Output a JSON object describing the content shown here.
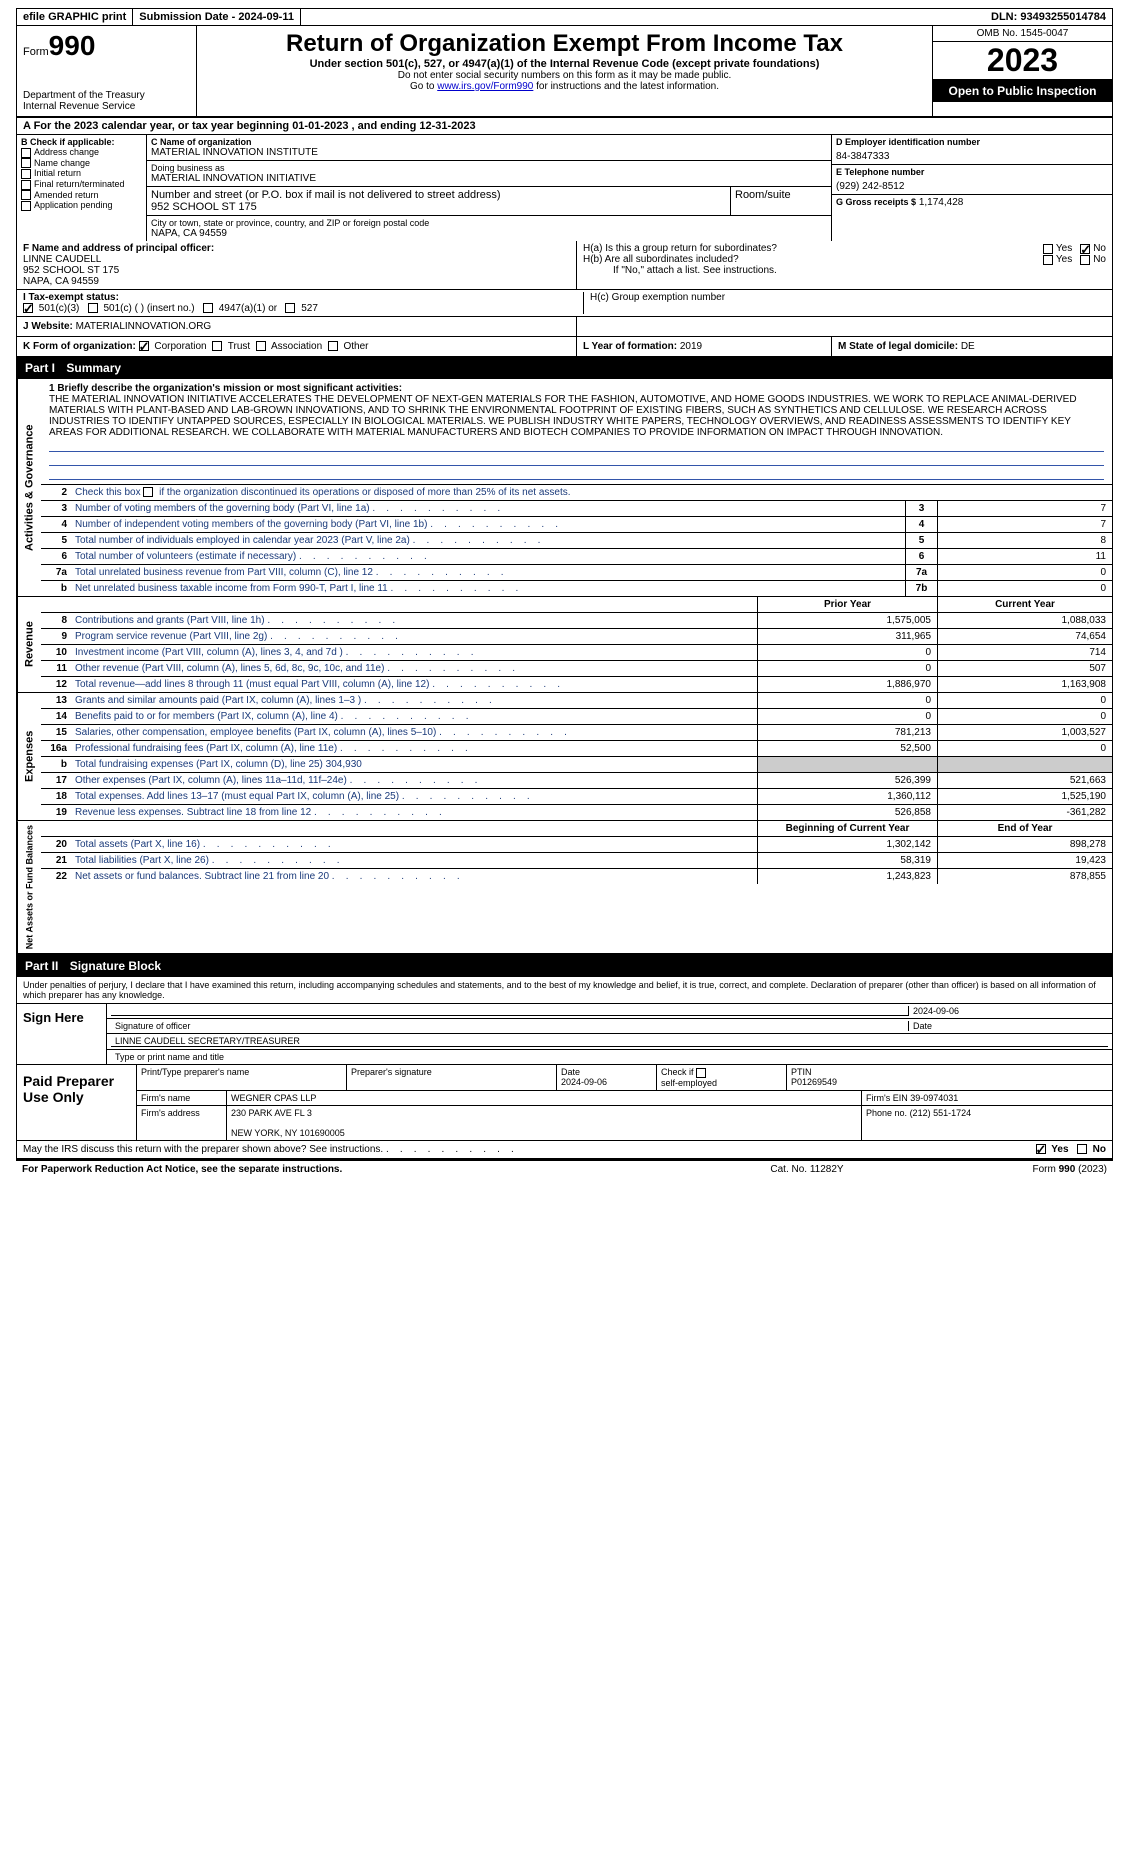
{
  "topbar": {
    "efile": "efile GRAPHIC print",
    "submission": "Submission Date - 2024-09-11",
    "dln": "DLN: 93493255014784"
  },
  "header": {
    "form_prefix": "Form",
    "form_num": "990",
    "dept": "Department of the Treasury",
    "irs": "Internal Revenue Service",
    "title": "Return of Organization Exempt From Income Tax",
    "sub": "Under section 501(c), 527, or 4947(a)(1) of the Internal Revenue Code (except private foundations)",
    "note1": "Do not enter social security numbers on this form as it may be made public.",
    "note2_pre": "Go to ",
    "note2_link": "www.irs.gov/Form990",
    "note2_post": " for instructions and the latest information.",
    "omb": "OMB No. 1545-0047",
    "year": "2023",
    "open": "Open to Public Inspection"
  },
  "section_a": "A For the 2023 calendar year, or tax year beginning 01-01-2023    , and ending 12-31-2023",
  "box_b": {
    "title": "B Check if applicable:",
    "items": [
      "Address change",
      "Name change",
      "Initial return",
      "Final return/terminated",
      "Amended return",
      "Application pending"
    ]
  },
  "box_c": {
    "name_lbl": "C Name of organization",
    "name": "MATERIAL INNOVATION INSTITUTE",
    "dba_lbl": "Doing business as",
    "dba": "MATERIAL INNOVATION INITIATIVE",
    "addr_lbl": "Number and street (or P.O. box if mail is not delivered to street address)",
    "addr": "952 SCHOOL ST 175",
    "room_lbl": "Room/suite",
    "city_lbl": "City or town, state or province, country, and ZIP or foreign postal code",
    "city": "NAPA, CA  94559"
  },
  "box_d": {
    "ein_lbl": "D Employer identification number",
    "ein": "84-3847333",
    "phone_lbl": "E Telephone number",
    "phone": "(929) 242-8512",
    "gross_lbl": "G Gross receipts $",
    "gross": "1,174,428"
  },
  "box_f": {
    "lbl": "F  Name and address of principal officer:",
    "name": "LINNE CAUDELL",
    "addr1": "952 SCHOOL ST 175",
    "addr2": "NAPA, CA  94559"
  },
  "box_h": {
    "ha": "H(a)  Is this a group return for subordinates?",
    "hb": "H(b)  Are all subordinates included?",
    "hb_note": "If \"No,\" attach a list. See instructions.",
    "hc": "H(c)  Group exemption number",
    "yes": "Yes",
    "no": "No"
  },
  "box_i": {
    "lbl": "I  Tax-exempt status:",
    "o1": "501(c)(3)",
    "o2": "501(c) (  ) (insert no.)",
    "o3": "4947(a)(1) or",
    "o4": "527"
  },
  "box_j": {
    "lbl": "J  Website:",
    "val": " MATERIALINNOVATION.ORG"
  },
  "box_k": {
    "lbl": "K Form of organization:",
    "o1": "Corporation",
    "o2": "Trust",
    "o3": "Association",
    "o4": "Other"
  },
  "box_l": {
    "lbl": "L Year of formation:",
    "val": "2019"
  },
  "box_m": {
    "lbl": "M State of legal domicile:",
    "val": "DE"
  },
  "part1": {
    "hdr": "Part I",
    "title": "Summary"
  },
  "mission": {
    "lbl": "1  Briefly describe the organization's mission or most significant activities:",
    "text": "THE MATERIAL INNOVATION INITIATIVE ACCELERATES THE DEVELOPMENT OF NEXT-GEN MATERIALS FOR THE FASHION, AUTOMOTIVE, AND HOME GOODS INDUSTRIES. WE WORK TO REPLACE ANIMAL-DERIVED MATERIALS WITH PLANT-BASED AND LAB-GROWN INNOVATIONS, AND TO SHRINK THE ENVIRONMENTAL FOOTPRINT OF EXISTING FIBERS, SUCH AS SYNTHETICS AND CELLULOSE. WE RESEARCH ACROSS INDUSTRIES TO IDENTIFY UNTAPPED SOURCES, ESPECIALLY IN BIOLOGICAL MATERIALS. WE PUBLISH INDUSTRY WHITE PAPERS, TECHNOLOGY OVERVIEWS, AND READINESS ASSESSMENTS TO IDENTIFY KEY AREAS FOR ADDITIONAL RESEARCH. WE COLLABORATE WITH MATERIAL MANUFACTURERS AND BIOTECH COMPANIES TO PROVIDE INFORMATION ON IMPACT THROUGH INNOVATION."
  },
  "tabs": {
    "ag": "Activities & Governance",
    "rev": "Revenue",
    "exp": "Expenses",
    "net": "Net Assets or Fund Balances"
  },
  "lines_ag": [
    {
      "n": "2",
      "d": "Check this box       if the organization discontinued its operations or disposed of more than 25% of its net assets.",
      "has_chk": true
    },
    {
      "n": "3",
      "d": "Number of voting members of the governing body (Part VI, line 1a)",
      "c": "3",
      "v": "7"
    },
    {
      "n": "4",
      "d": "Number of independent voting members of the governing body (Part VI, line 1b)",
      "c": "4",
      "v": "7"
    },
    {
      "n": "5",
      "d": "Total number of individuals employed in calendar year 2023 (Part V, line 2a)",
      "c": "5",
      "v": "8"
    },
    {
      "n": "6",
      "d": "Total number of volunteers (estimate if necessary)",
      "c": "6",
      "v": "11"
    },
    {
      "n": "7a",
      "d": "Total unrelated business revenue from Part VIII, column (C), line 12",
      "c": "7a",
      "v": "0"
    },
    {
      "n": "b",
      "d": "Net unrelated business taxable income from Form 990-T, Part I, line 11",
      "c": "7b",
      "v": "0"
    }
  ],
  "hdr_rev": {
    "c1": "Prior Year",
    "c2": "Current Year"
  },
  "lines_rev": [
    {
      "n": "8",
      "d": "Contributions and grants (Part VIII, line 1h)",
      "v1": "1,575,005",
      "v2": "1,088,033"
    },
    {
      "n": "9",
      "d": "Program service revenue (Part VIII, line 2g)",
      "v1": "311,965",
      "v2": "74,654"
    },
    {
      "n": "10",
      "d": "Investment income (Part VIII, column (A), lines 3, 4, and 7d )",
      "v1": "0",
      "v2": "714"
    },
    {
      "n": "11",
      "d": "Other revenue (Part VIII, column (A), lines 5, 6d, 8c, 9c, 10c, and 11e)",
      "v1": "0",
      "v2": "507"
    },
    {
      "n": "12",
      "d": "Total revenue—add lines 8 through 11 (must equal Part VIII, column (A), line 12)",
      "v1": "1,886,970",
      "v2": "1,163,908"
    }
  ],
  "lines_exp": [
    {
      "n": "13",
      "d": "Grants and similar amounts paid (Part IX, column (A), lines 1–3 )",
      "v1": "0",
      "v2": "0"
    },
    {
      "n": "14",
      "d": "Benefits paid to or for members (Part IX, column (A), line 4)",
      "v1": "0",
      "v2": "0"
    },
    {
      "n": "15",
      "d": "Salaries, other compensation, employee benefits (Part IX, column (A), lines 5–10)",
      "v1": "781,213",
      "v2": "1,003,527"
    },
    {
      "n": "16a",
      "d": "Professional fundraising fees (Part IX, column (A), line 11e)",
      "v1": "52,500",
      "v2": "0"
    },
    {
      "n": "b",
      "d": "Total fundraising expenses (Part IX, column (D), line 25) 304,930",
      "grey": true
    },
    {
      "n": "17",
      "d": "Other expenses (Part IX, column (A), lines 11a–11d, 11f–24e)",
      "v1": "526,399",
      "v2": "521,663"
    },
    {
      "n": "18",
      "d": "Total expenses. Add lines 13–17 (must equal Part IX, column (A), line 25)",
      "v1": "1,360,112",
      "v2": "1,525,190"
    },
    {
      "n": "19",
      "d": "Revenue less expenses. Subtract line 18 from line 12",
      "v1": "526,858",
      "v2": "-361,282"
    }
  ],
  "hdr_net": {
    "c1": "Beginning of Current Year",
    "c2": "End of Year"
  },
  "lines_net": [
    {
      "n": "20",
      "d": "Total assets (Part X, line 16)",
      "v1": "1,302,142",
      "v2": "898,278"
    },
    {
      "n": "21",
      "d": "Total liabilities (Part X, line 26)",
      "v1": "58,319",
      "v2": "19,423"
    },
    {
      "n": "22",
      "d": "Net assets or fund balances. Subtract line 21 from line 20",
      "v1": "1,243,823",
      "v2": "878,855"
    }
  ],
  "part2": {
    "hdr": "Part II",
    "title": "Signature Block"
  },
  "sig": {
    "declare": "Under penalties of perjury, I declare that I have examined this return, including accompanying schedules and statements, and to the best of my knowledge and belief, it is true, correct, and complete. Declaration of preparer (other than officer) is based on all information of which preparer has any knowledge.",
    "sign_here": "Sign Here",
    "sig_officer_lbl": "Signature of officer",
    "sig_date": "2024-09-06",
    "date_lbl": "Date",
    "officer_name": "LINNE CAUDELL SECRETARY/TREASURER",
    "type_lbl": "Type or print name and title",
    "paid_prep": "Paid Preparer Use Only",
    "prep_name_lbl": "Print/Type preparer's name",
    "prep_sig_lbl": "Preparer's signature",
    "prep_date": "2024-09-06",
    "self_emp": "self-employed",
    "check_if": "Check         if",
    "ptin_lbl": "PTIN",
    "ptin": "P01269549",
    "firm_name_lbl": "Firm's name",
    "firm_name": "WEGNER CPAS LLP",
    "firm_ein_lbl": "Firm's EIN",
    "firm_ein": "39-0974031",
    "firm_addr_lbl": "Firm's address",
    "firm_addr1": "230 PARK AVE FL 3",
    "firm_addr2": "NEW YORK, NY  101690005",
    "phone_lbl": "Phone no.",
    "phone": "(212) 551-1724"
  },
  "footer": {
    "discuss": "May the IRS discuss this return with the preparer shown above? See instructions.",
    "yes": "Yes",
    "no": "No",
    "paperwork": "For Paperwork Reduction Act Notice, see the separate instructions.",
    "cat": "Cat. No. 11282Y",
    "form": "Form 990 (2023)"
  }
}
